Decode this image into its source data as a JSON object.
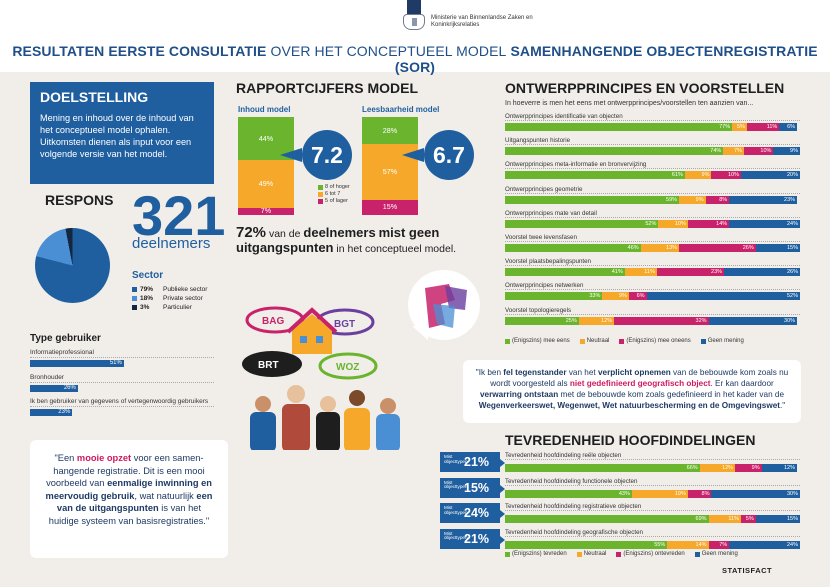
{
  "header": {
    "ministry": "Ministerie van Binnenlandse Zaken en Koninkrijksrelaties",
    "title_a": "RESULTATEN EERSTE CONSULTATIE",
    "title_b": "OVER HET CONCEPTUEEL MODEL",
    "title_c": "SAMENHANGENDE OBJECTENREGISTRATIE (SOR)"
  },
  "doelstelling": {
    "heading": "DOELSTELLING",
    "text": "Mening en inhoud over de inhoud van het conceptueel model ophalen. Uitkomsten dienen als input voor een volgende versie van het model."
  },
  "respons": {
    "heading": "RESPONS",
    "count": "321",
    "unit": "deelnemers",
    "sector_heading": "Sector",
    "sectors": [
      {
        "pct": "79%",
        "label": "Publieke sector",
        "color": "#1f5f9f"
      },
      {
        "pct": "18%",
        "label": "Private sector",
        "color": "#4a8fd4"
      },
      {
        "pct": "3%",
        "label": "Particulier",
        "color": "#15263f"
      }
    ]
  },
  "type_gebruiker": {
    "heading": "Type gebruiker",
    "rows": [
      {
        "label": "Informatieprofessional",
        "value": "51%",
        "fraction": 0.51
      },
      {
        "label": "Bronhouder",
        "value": "26%",
        "fraction": 0.26
      },
      {
        "label": "Ik ben gebruiker van gegevens of vertegenwoordig gebruikers",
        "value": "23%",
        "fraction": 0.23
      }
    ]
  },
  "quote_left": {
    "q_open": "\"Een ",
    "q_h1": "mooie opzet",
    "q_t1": " voor een samen-hangende registratie. Dit is een mooi voorbeeld van ",
    "q_h2": "eenmalige inwinning en meervoudig gebruik",
    "q_t2": ", wat natuurlijk ",
    "q_h3": "een van de uitgangspunten",
    "q_t3": " is van het huidige systeem van basisregistraties.\""
  },
  "rapportcijfers": {
    "heading": "RAPPORTCIJFERS MODEL",
    "models": [
      {
        "name": "Inhoud model",
        "score": "7.2",
        "segments": [
          {
            "label": "44%",
            "value": 0.44
          },
          {
            "label": "49%",
            "value": 0.49
          },
          {
            "label": "7%",
            "value": 0.07
          }
        ]
      },
      {
        "name": "Leesbaarheid model",
        "score": "6.7",
        "segments": [
          {
            "label": "28%",
            "value": 0.28
          },
          {
            "label": "57%",
            "value": 0.57
          },
          {
            "label": "15%",
            "value": 0.15
          }
        ]
      }
    ],
    "legend": [
      {
        "label": "8 of hoger",
        "color": "#6ab42e"
      },
      {
        "label": "6 tot 7",
        "color": "#f5a82a"
      },
      {
        "label": "5 of lager",
        "color": "#c8226b"
      }
    ],
    "stat_pct": "72%",
    "stat_t1": " van de ",
    "stat_b1": "deelnemers",
    "stat_b2": "mist geen uitgangspunten",
    "stat_t2": " in het conceptueel model."
  },
  "illustration": {
    "labels": [
      "BAG",
      "BGT",
      "BRT",
      "WOZ"
    ]
  },
  "ontwerpprincipes": {
    "heading": "ONTWERPPRINCIPES EN VOORSTELLEN",
    "subtitle": "In hoeverre is men het eens met ontwerpprincipes/voorstellen ten aanzien van...",
    "rows": [
      {
        "label": "Ontwerpprincipes identificatie van objecten",
        "values": [
          77,
          5,
          11,
          6
        ],
        "labels": [
          "77%",
          "5%",
          "11%",
          "6%"
        ]
      },
      {
        "label": "Uitgangspunten historie",
        "values": [
          74,
          7,
          10,
          9
        ],
        "labels": [
          "74%",
          "7%",
          "10%",
          "9%"
        ]
      },
      {
        "label": "Ontwerpprincipes meta-informatie en bronvervijzing",
        "values": [
          61,
          9,
          10,
          20
        ],
        "labels": [
          "61%",
          "9%",
          "10%",
          "20%"
        ]
      },
      {
        "label": "Ontwerpprincipes geometrie",
        "values": [
          59,
          9,
          8,
          23
        ],
        "labels": [
          "59%",
          "9%",
          "8%",
          "23%"
        ]
      },
      {
        "label": "Ontwerpprincipes mate van detail",
        "values": [
          52,
          10,
          14,
          24
        ],
        "labels": [
          "52%",
          "10%",
          "14%",
          "24%"
        ]
      },
      {
        "label": "Voorstel twee levensfasen",
        "values": [
          46,
          13,
          26,
          15
        ],
        "labels": [
          "46%",
          "13%",
          "26%",
          "15%"
        ]
      },
      {
        "label": "Voorstel plaatsbepalingspunten",
        "values": [
          41,
          11,
          23,
          26
        ],
        "labels": [
          "41%",
          "11%",
          "23%",
          "26%"
        ]
      },
      {
        "label": "Ontwerpprincipes netwerken",
        "values": [
          33,
          9,
          6,
          52
        ],
        "labels": [
          "33%",
          "9%",
          "6%",
          "52%"
        ]
      },
      {
        "label": "Voorstel topologieregels",
        "values": [
          25,
          12,
          32,
          30
        ],
        "labels": [
          "25%",
          "12%",
          "32%",
          "30%"
        ]
      }
    ],
    "legend": [
      {
        "label": "(Enigszins) mee eens",
        "color": "#6ab42e"
      },
      {
        "label": "Neutraal",
        "color": "#f5a82a"
      },
      {
        "label": "(Enigszins) mee oneens",
        "color": "#c8226b"
      },
      {
        "label": "Geen mening",
        "color": "#1f5f9f"
      }
    ]
  },
  "quote_right": {
    "q_t0": "\"Ik ben ",
    "q_h1": "fel tegenstander",
    "q_t1": " van het ",
    "q_h2": "verplicht opnemen",
    "q_t2": " van de bebouwde kom zoals nu wordt voorgesteld als ",
    "q_h3": "niet gedefinieerd geografisch object",
    "q_t3": ". Er kan daardoor ",
    "q_h4": "verwarring ontstaan",
    "q_t4": " met de bebouwde kom zoals gedefinieerd in het kader van de ",
    "q_h5": "Wegenverkeerswet, Wegenwet, Wet natuurbescherming en de Omgevingswet",
    "q_t5": ".\""
  },
  "tevredenheid": {
    "heading": "TEVREDENHEID HOOFDINDELINGEN",
    "rows": [
      {
        "tag_small": "Mist objecttypen",
        "tag_pct": "21%",
        "label": "Tevredenheid hoofdindeling reële objecten",
        "values": [
          66,
          12,
          9,
          12
        ],
        "labels": [
          "66%",
          "12%",
          "9%",
          "12%"
        ]
      },
      {
        "tag_small": "Mist objecttypen",
        "tag_pct": "15%",
        "label": "Tevredenheid hoofdindeling functionele objecten",
        "values": [
          43,
          19,
          8,
          30
        ],
        "labels": [
          "43%",
          "19%",
          "8%",
          "30%"
        ]
      },
      {
        "tag_small": "Mist objecttypen",
        "tag_pct": "24%",
        "label": "Tevredenheid hoofdindeling registratieve objecten",
        "values": [
          69,
          11,
          5,
          15
        ],
        "labels": [
          "69%",
          "11%",
          "5%",
          "15%"
        ]
      },
      {
        "tag_small": "Mist objecttypen",
        "tag_pct": "21%",
        "label": "Tevredenheid hoofdindeling geografische objecten",
        "values": [
          55,
          14,
          7,
          24
        ],
        "labels": [
          "55%",
          "14%",
          "7%",
          "24%"
        ]
      }
    ],
    "legend": [
      {
        "label": "(Enigszins) tevreden",
        "color": "#6ab42e"
      },
      {
        "label": "Neutraal",
        "color": "#f5a82a"
      },
      {
        "label": "(Enigszins) ontevreden",
        "color": "#c8226b"
      },
      {
        "label": "Geen mening",
        "color": "#1f5f9f"
      }
    ]
  },
  "footer": {
    "brand": "STATISFACT"
  }
}
